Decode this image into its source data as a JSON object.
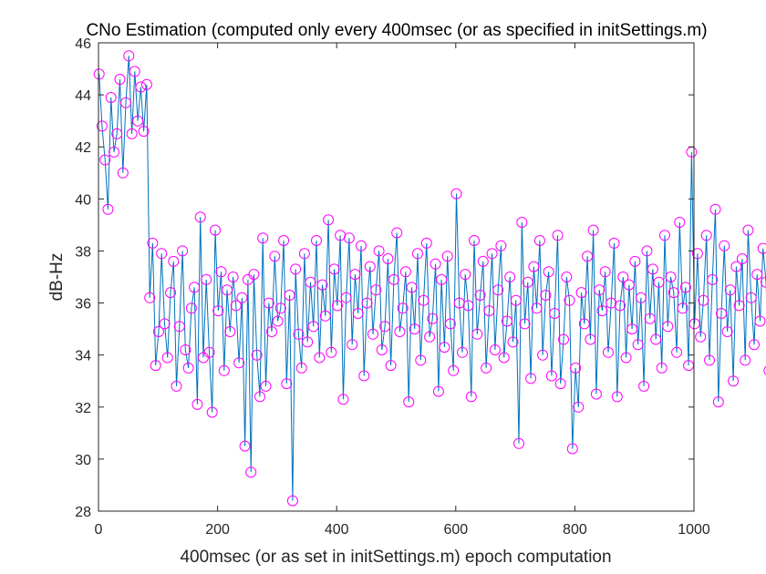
{
  "chart_data": {
    "type": "line",
    "title": "CNo Estimation (computed only every 400msec (or as specified in initSettings.m)",
    "xlabel": "400msec (or as set in initSettings.m) epoch computation",
    "ylabel": "dB-Hz",
    "xlim": [
      0,
      1000
    ],
    "ylim": [
      28,
      46
    ],
    "xticks": [
      "0",
      "200",
      "400",
      "600",
      "800",
      "1000"
    ],
    "yticks": [
      "28",
      "30",
      "32",
      "34",
      "36",
      "38",
      "40",
      "42",
      "44",
      "46"
    ],
    "grid": false,
    "box": true,
    "series": [
      {
        "line_color": "#0072bd",
        "marker": "circle",
        "marker_color": "#ff00ff",
        "x_start": 1,
        "x_step": 5,
        "values": [
          44.8,
          42.8,
          41.5,
          39.6,
          43.9,
          41.8,
          42.5,
          44.6,
          41.0,
          43.7,
          45.5,
          42.5,
          44.9,
          43.0,
          44.3,
          42.6,
          44.4,
          36.2,
          38.3,
          33.6,
          34.9,
          37.9,
          35.2,
          33.9,
          36.4,
          37.6,
          32.8,
          35.1,
          38.0,
          34.2,
          33.5,
          35.8,
          36.6,
          32.1,
          39.3,
          33.9,
          36.9,
          34.1,
          31.8,
          38.8,
          35.7,
          37.2,
          33.4,
          36.5,
          34.9,
          37.0,
          35.9,
          33.7,
          36.2,
          30.5,
          36.9,
          29.5,
          37.1,
          34.0,
          32.4,
          38.5,
          32.8,
          36.0,
          34.9,
          37.8,
          35.3,
          35.8,
          38.4,
          32.9,
          36.3,
          28.4,
          37.3,
          34.8,
          33.5,
          37.9,
          34.5,
          36.8,
          35.1,
          38.4,
          33.9,
          36.7,
          35.5,
          39.2,
          34.1,
          37.3,
          35.9,
          38.6,
          32.3,
          36.2,
          38.5,
          34.4,
          37.1,
          35.6,
          38.2,
          33.2,
          36.0,
          37.4,
          34.8,
          36.5,
          38.0,
          34.2,
          35.1,
          37.7,
          33.6,
          36.9,
          38.7,
          34.9,
          35.8,
          37.2,
          32.2,
          36.6,
          35.0,
          37.9,
          33.8,
          36.1,
          38.3,
          34.7,
          35.4,
          37.5,
          32.6,
          36.9,
          34.3,
          37.8,
          35.2,
          33.4,
          40.2,
          36.0,
          34.1,
          37.1,
          35.9,
          32.4,
          38.4,
          34.8,
          36.3,
          37.6,
          33.5,
          35.7,
          37.9,
          34.2,
          36.5,
          38.2,
          33.9,
          35.3,
          37.0,
          34.5,
          36.1,
          30.6,
          39.1,
          35.2,
          36.8,
          33.1,
          37.4,
          35.8,
          38.4,
          34.0,
          36.3,
          37.2,
          33.2,
          35.6,
          38.6,
          32.9,
          34.6,
          37.0,
          36.1,
          30.4,
          33.5,
          32.0,
          36.4,
          35.2,
          37.8,
          34.6,
          38.8,
          32.5,
          36.5,
          35.7,
          37.2,
          34.1,
          36.0,
          38.3,
          32.4,
          35.9,
          37.0,
          33.9,
          36.7,
          35.0,
          37.6,
          34.4,
          36.2,
          32.8,
          38.0,
          35.4,
          37.3,
          34.6,
          36.8,
          33.5,
          38.6,
          35.1,
          37.0,
          36.4,
          34.1,
          39.1,
          35.8,
          36.6,
          33.6,
          41.8,
          35.2,
          37.9,
          34.7,
          36.1,
          38.6,
          33.8,
          36.9,
          39.6,
          32.2,
          35.6,
          38.2,
          34.9,
          36.5,
          33.0,
          37.4,
          35.9,
          37.7,
          33.8,
          38.8,
          36.2,
          34.4,
          37.1,
          35.3,
          38.1,
          36.8,
          33.4,
          37.5,
          35.7,
          38.4,
          34.0,
          36.6,
          37.9,
          33.2,
          35.8,
          38.2,
          34.9,
          36.4,
          37.1,
          32.8,
          38.8,
          35.5,
          36.8,
          34.3,
          37.6,
          32.6,
          36.0,
          37.3,
          33.9,
          38.4,
          35.1,
          36.7,
          32.7,
          37.7,
          35.4,
          38.5,
          34.6,
          36.2,
          37.0,
          33.5,
          36.3,
          31.9,
          36.9,
          35.6,
          37.1,
          34.1,
          36.4,
          35.0,
          37.2,
          33.3,
          36.0,
          37.8,
          34.7,
          36.5,
          35.5,
          33.1,
          38.2,
          34.9,
          36.7,
          35.8,
          37.3,
          32.9,
          36.1,
          38.0,
          34.4,
          36.6,
          35.3,
          31.7,
          36.8,
          35.9,
          38.1,
          34.2,
          36.4,
          35.7,
          37.2,
          33.6,
          36.9,
          35.0,
          37.6,
          34.5,
          36.2,
          38.3,
          33.9,
          35.8,
          37.5,
          32.0,
          36.0,
          35.1,
          37.9,
          34.3,
          36.7,
          35.6,
          37.0,
          33.5,
          38.6,
          36.1,
          34.8,
          37.4,
          35.2,
          36.5,
          33.8,
          37.1,
          38.7,
          34.6,
          36.3,
          35.5,
          37.8,
          32.2,
          38.9,
          35.3,
          36.6,
          34.0,
          37.7,
          35.9,
          38.3,
          33.7,
          36.8,
          34.9,
          37.3,
          31.4,
          38.5,
          35.0,
          33.1,
          36.4,
          37.6,
          32.5,
          36.9,
          34.6,
          38.1,
          35.4,
          36.1,
          37.3,
          33.4,
          36.6,
          35.7,
          38.9,
          34.8,
          36.3,
          37.0,
          35.2,
          39.4,
          34.1,
          36.7,
          35.8,
          37.5,
          33.9,
          36.2,
          38.1,
          35.5,
          36.9,
          34.6,
          37.7,
          36.0,
          38.5,
          34.3,
          36.5,
          35.1,
          37.2,
          32.7,
          31.9,
          36.8,
          35.6,
          37.9,
          34.2,
          36.4,
          35.0,
          38.2,
          33.5,
          36.1,
          34.8,
          37.1,
          36.6,
          34.4,
          38.2,
          35.9,
          36.7,
          36.2
        ]
      }
    ]
  }
}
